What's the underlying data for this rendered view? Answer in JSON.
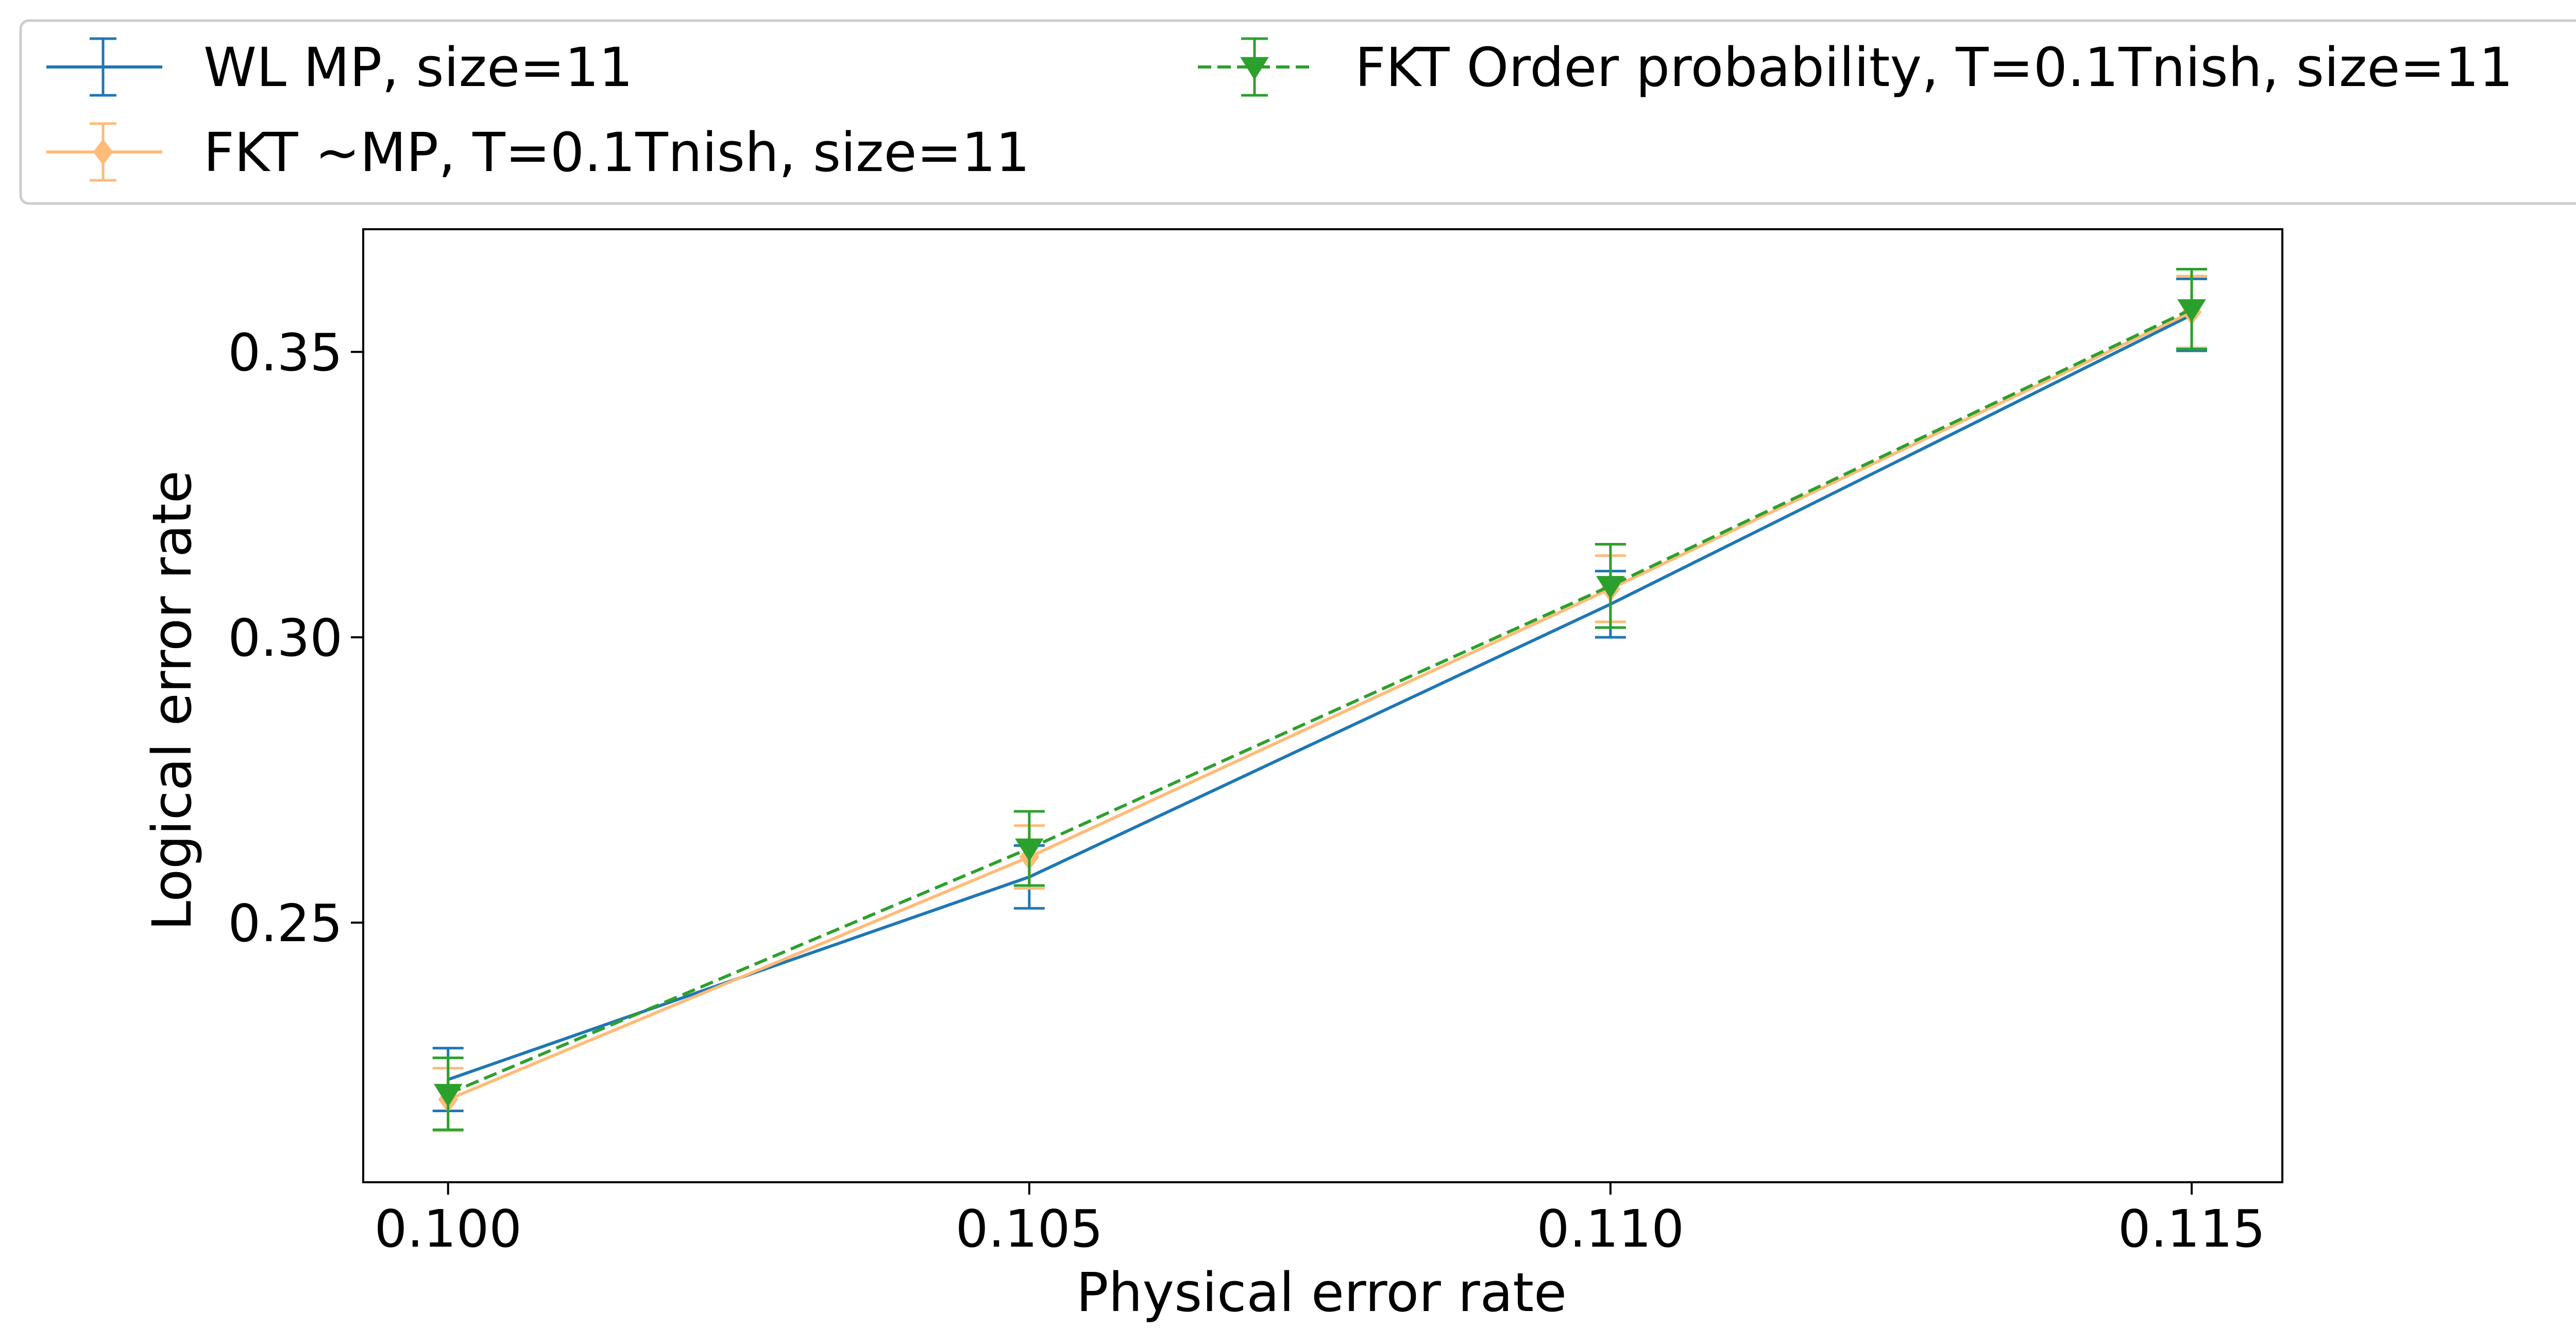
{
  "chart_data": {
    "type": "line",
    "xlabel": "Physical error rate",
    "ylabel": "Logical error rate",
    "x": [
      0.1,
      0.105,
      0.11,
      0.115
    ],
    "xticks": [
      "0.100",
      "0.105",
      "0.110",
      "0.115"
    ],
    "yticks": [
      "0.25",
      "0.30",
      "0.35"
    ],
    "xlim": [
      0.09927,
      0.11578
    ],
    "ylim": [
      0.2045,
      0.3715
    ],
    "grid": false,
    "legend": {
      "placement": "top, outside plot",
      "columns": 2
    },
    "series": [
      {
        "name": "WL MP, size=11",
        "color": "#1f77b4",
        "linestyle": "solid",
        "marker": "none",
        "values": [
          0.2225,
          0.258,
          0.3058,
          0.3565
        ],
        "err": [
          0.0055,
          0.0055,
          0.0058,
          0.0063
        ]
      },
      {
        "name": "FKT ~MP, T=0.1Tnish, size=11",
        "color": "#ffbb78",
        "linestyle": "solid",
        "marker": "diamond",
        "values": [
          0.219,
          0.2615,
          0.3085,
          0.357
        ],
        "err": [
          0.0055,
          0.0055,
          0.0058,
          0.0063
        ]
      },
      {
        "name": "FKT Order probability, T=0.1Tnish, size=11",
        "color": "#2ca02c",
        "linestyle": "dashed",
        "marker": "triangle-down",
        "values": [
          0.22,
          0.263,
          0.309,
          0.3575
        ],
        "err": [
          0.0063,
          0.0065,
          0.0073,
          0.007
        ]
      }
    ]
  }
}
